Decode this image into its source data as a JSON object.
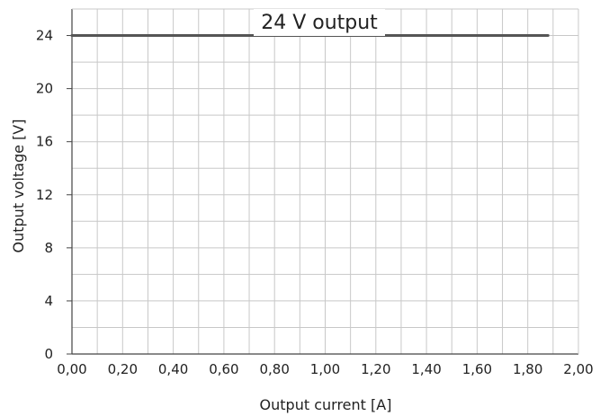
{
  "chart_data": {
    "type": "line",
    "title": "24 V output",
    "xlabel": "Output current [A]",
    "ylabel": "Output voltage [V]",
    "xlim": [
      0,
      2.0
    ],
    "ylim": [
      0,
      26
    ],
    "x_ticks": [
      "0,00",
      "0,20",
      "0,40",
      "0,60",
      "0,80",
      "1,00",
      "1,20",
      "1,40",
      "1,60",
      "1,80",
      "2,00"
    ],
    "x_tick_values": [
      0,
      0.2,
      0.4,
      0.6,
      0.8,
      1.0,
      1.2,
      1.4,
      1.6,
      1.8,
      2.0
    ],
    "y_ticks": [
      "0",
      "4",
      "8",
      "12",
      "16",
      "20",
      "24"
    ],
    "y_tick_values": [
      0,
      4,
      8,
      12,
      16,
      20,
      24
    ],
    "grid": true,
    "series": [
      {
        "x": [
          0.0,
          1.88
        ],
        "y": [
          24,
          24
        ],
        "color": "#555555"
      }
    ]
  }
}
